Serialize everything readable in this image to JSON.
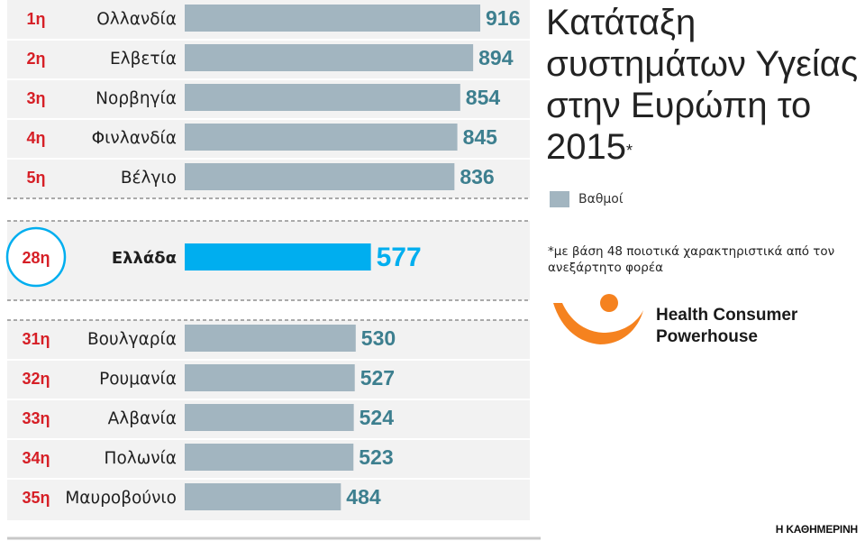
{
  "title": "Κατάταξη συστημάτων Υγείας στην Ευρώπη το 2015",
  "title_marker": "*",
  "legend": {
    "label": "Βαθμοί",
    "color": "#a2b5c0"
  },
  "note": "*με βάση 48 ποιοτικά χαρακτηριστικά από τον ανεξάρτητο φορέα",
  "logo": {
    "line1": "Health Consumer",
    "line2": "Powerhouse",
    "color": "#f5821f"
  },
  "source": "Η ΚΑΘΗΜΕΡΙΝΗ",
  "colors": {
    "bar": "#a2b5c0",
    "highlight_bar": "#00aeef",
    "value_text": "#3d7f8f",
    "highlight_value": "#00aeef",
    "rank": "#d61f26"
  },
  "chart_data": {
    "type": "bar",
    "orientation": "horizontal",
    "title": "Κατάταξη συστημάτων Υγείας στην Ευρώπη το 2015",
    "categories": [
      "Ολλανδία",
      "Ελβετία",
      "Νορβηγία",
      "Φινλανδία",
      "Βέλγιο",
      "Ελλάδα",
      "Βουλγαρία",
      "Ρουμανία",
      "Αλβανία",
      "Πολωνία",
      "Μαυροβούνιο"
    ],
    "ranks": [
      "1η",
      "2η",
      "3η",
      "4η",
      "5η",
      "28η",
      "31η",
      "32η",
      "33η",
      "34η",
      "35η"
    ],
    "values": [
      916,
      894,
      854,
      845,
      836,
      577,
      530,
      527,
      524,
      523,
      484
    ],
    "highlight": "Ελλάδα",
    "series": [
      {
        "name": "Βαθμοί",
        "values": [
          916,
          894,
          854,
          845,
          836,
          577,
          530,
          527,
          524,
          523,
          484
        ]
      }
    ],
    "groups": [
      [
        0,
        1,
        2,
        3,
        4
      ],
      [
        5
      ],
      [
        6,
        7,
        8,
        9,
        10
      ]
    ],
    "xlim": [
      0,
      916
    ],
    "grid": false
  }
}
